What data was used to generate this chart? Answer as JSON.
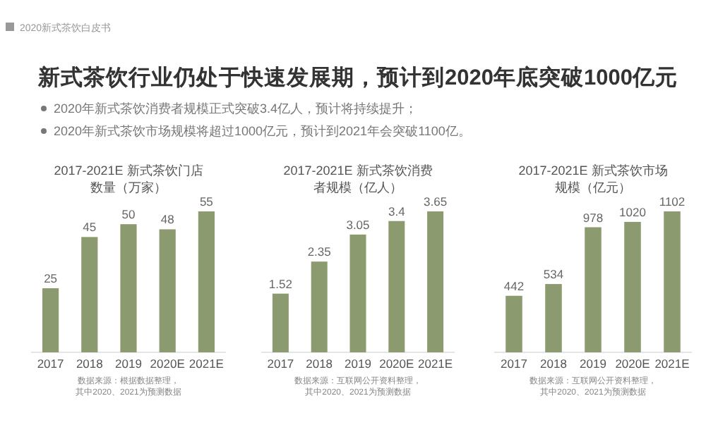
{
  "chart_data": [
    {
      "type": "other",
      "subtitle": "2020新式茶饮白皮书",
      "title": "新式茶饮行业仍处于快速发展期，预计到2020年底突破1000亿元",
      "annotations": [
        "2020年新式茶饮消费者规模正式突破3.4亿人，预计将持续提升；",
        "2020年新式茶饮市场规模将超过1000亿元，预计到2021年会突破1100亿。"
      ]
    },
    {
      "type": "bar",
      "title": "2017-2021E 新式茶饮门店数量（万家）",
      "categories": [
        "2017",
        "2018",
        "2019",
        "2020E",
        "2021E"
      ],
      "values": [
        25,
        45,
        50,
        48,
        55
      ],
      "color": "#8c9a6f",
      "data_labels": true,
      "annotations": [
        "数据来源：根据数据整理，其中2020、2021为预测数据"
      ]
    },
    {
      "type": "bar",
      "title": "2017-2021E 新式茶饮消费者规模（亿人）",
      "categories": [
        "2017",
        "2018",
        "2019",
        "2020E",
        "2021E"
      ],
      "values": [
        1.52,
        2.35,
        3.05,
        3.4,
        3.65
      ],
      "color": "#8c9a6f",
      "data_labels": true,
      "annotations": [
        "数据来源：互联网公开资料整理，其中2020、2021为预测数据"
      ]
    },
    {
      "type": "bar",
      "title": "2017-2021E 新式茶饮市场规模（亿元）",
      "categories": [
        "2017",
        "2018",
        "2019",
        "2020E",
        "2021E"
      ],
      "values": [
        442,
        534,
        978,
        1020,
        1102
      ],
      "color": "#8c9a6f",
      "data_labels": true,
      "annotations": [
        "数据来源：互联网公开资料整理，其中2020、2021为预测数据"
      ]
    }
  ]
}
